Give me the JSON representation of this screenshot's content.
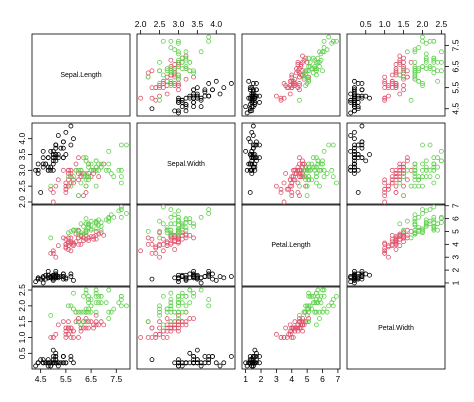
{
  "chart_data": {
    "type": "scatter",
    "variables": [
      "Sepal.Length",
      "Sepal.Width",
      "Petal.Length",
      "Petal.Width"
    ],
    "ranges": [
      [
        4.3,
        7.9
      ],
      [
        2.0,
        4.4
      ],
      [
        1.0,
        6.9
      ],
      [
        0.1,
        2.5
      ]
    ],
    "ticks": [
      [
        4.5,
        5.5,
        6.5,
        7.5
      ],
      [
        2.0,
        2.5,
        3.0,
        3.5,
        4.0
      ],
      [
        1,
        2,
        3,
        4,
        5,
        6,
        7
      ],
      [
        0.5,
        1.0,
        1.5,
        2.0,
        2.5
      ]
    ],
    "tick_labels": [
      [
        "4.5",
        "5.5",
        "6.5",
        "7.5"
      ],
      [
        "2.0",
        "2.5",
        "3.0",
        "3.5",
        "4.0"
      ],
      [
        "1",
        "2",
        "3",
        "4",
        "5",
        "6",
        "7"
      ],
      [
        "0.5",
        "1.0",
        "1.5",
        "2.0",
        "2.5"
      ]
    ],
    "point_marker": "open-circle",
    "grid": false,
    "legend": "none",
    "series": [
      {
        "color": "#000000",
        "points": [
          [
            5.1,
            3.5,
            1.4,
            0.2
          ],
          [
            4.9,
            3.0,
            1.4,
            0.2
          ],
          [
            4.7,
            3.2,
            1.3,
            0.2
          ],
          [
            4.6,
            3.1,
            1.5,
            0.2
          ],
          [
            5.0,
            3.6,
            1.4,
            0.2
          ],
          [
            5.4,
            3.9,
            1.7,
            0.4
          ],
          [
            4.6,
            3.4,
            1.4,
            0.3
          ],
          [
            5.0,
            3.4,
            1.5,
            0.2
          ],
          [
            4.4,
            2.9,
            1.4,
            0.2
          ],
          [
            4.9,
            3.1,
            1.5,
            0.1
          ],
          [
            5.4,
            3.7,
            1.5,
            0.2
          ],
          [
            4.8,
            3.4,
            1.6,
            0.2
          ],
          [
            4.8,
            3.0,
            1.4,
            0.1
          ],
          [
            4.3,
            3.0,
            1.1,
            0.1
          ],
          [
            5.8,
            4.0,
            1.2,
            0.2
          ],
          [
            5.7,
            4.4,
            1.5,
            0.4
          ],
          [
            5.4,
            3.9,
            1.3,
            0.4
          ],
          [
            5.1,
            3.5,
            1.4,
            0.3
          ],
          [
            5.7,
            3.8,
            1.7,
            0.3
          ],
          [
            5.1,
            3.8,
            1.5,
            0.3
          ],
          [
            5.4,
            3.4,
            1.7,
            0.2
          ],
          [
            5.1,
            3.7,
            1.5,
            0.4
          ],
          [
            4.6,
            3.6,
            1.0,
            0.2
          ],
          [
            5.1,
            3.3,
            1.7,
            0.5
          ],
          [
            4.8,
            3.4,
            1.9,
            0.2
          ],
          [
            5.0,
            3.0,
            1.6,
            0.2
          ],
          [
            5.0,
            3.4,
            1.6,
            0.4
          ],
          [
            5.2,
            3.5,
            1.5,
            0.2
          ],
          [
            5.2,
            3.4,
            1.4,
            0.2
          ],
          [
            4.7,
            3.2,
            1.6,
            0.2
          ],
          [
            4.8,
            3.1,
            1.6,
            0.2
          ],
          [
            5.4,
            3.4,
            1.5,
            0.4
          ],
          [
            5.2,
            4.1,
            1.5,
            0.1
          ],
          [
            5.5,
            4.2,
            1.4,
            0.2
          ],
          [
            4.9,
            3.1,
            1.5,
            0.2
          ],
          [
            5.0,
            3.2,
            1.2,
            0.2
          ],
          [
            5.5,
            3.5,
            1.3,
            0.2
          ],
          [
            4.9,
            3.6,
            1.4,
            0.1
          ],
          [
            4.4,
            3.0,
            1.3,
            0.2
          ],
          [
            5.1,
            3.4,
            1.5,
            0.2
          ],
          [
            5.0,
            3.5,
            1.3,
            0.3
          ],
          [
            4.5,
            2.3,
            1.3,
            0.3
          ],
          [
            4.4,
            3.2,
            1.3,
            0.2
          ],
          [
            5.0,
            3.5,
            1.6,
            0.6
          ],
          [
            5.1,
            3.8,
            1.9,
            0.4
          ],
          [
            4.8,
            3.0,
            1.4,
            0.3
          ],
          [
            5.1,
            3.8,
            1.6,
            0.2
          ],
          [
            4.6,
            3.2,
            1.4,
            0.2
          ],
          [
            5.3,
            3.7,
            1.5,
            0.2
          ],
          [
            5.0,
            3.3,
            1.4,
            0.2
          ]
        ]
      },
      {
        "color": "#df536b",
        "points": [
          [
            7.0,
            3.2,
            4.7,
            1.4
          ],
          [
            6.4,
            3.2,
            4.5,
            1.5
          ],
          [
            6.9,
            3.1,
            4.9,
            1.5
          ],
          [
            5.5,
            2.3,
            4.0,
            1.3
          ],
          [
            6.5,
            2.8,
            4.6,
            1.5
          ],
          [
            5.7,
            2.8,
            4.5,
            1.3
          ],
          [
            6.3,
            3.3,
            4.7,
            1.6
          ],
          [
            4.9,
            2.4,
            3.3,
            1.0
          ],
          [
            6.6,
            2.9,
            4.6,
            1.3
          ],
          [
            5.2,
            2.7,
            3.9,
            1.4
          ],
          [
            5.0,
            2.0,
            3.5,
            1.0
          ],
          [
            5.9,
            3.0,
            4.2,
            1.5
          ],
          [
            6.0,
            2.2,
            4.0,
            1.0
          ],
          [
            6.1,
            2.9,
            4.7,
            1.4
          ],
          [
            5.6,
            2.9,
            3.6,
            1.3
          ],
          [
            6.7,
            3.1,
            4.4,
            1.4
          ],
          [
            5.6,
            3.0,
            4.5,
            1.5
          ],
          [
            5.8,
            2.7,
            4.1,
            1.0
          ],
          [
            6.2,
            2.2,
            4.5,
            1.5
          ],
          [
            5.6,
            2.5,
            3.9,
            1.1
          ],
          [
            5.9,
            3.2,
            4.8,
            1.8
          ],
          [
            6.1,
            2.8,
            4.0,
            1.3
          ],
          [
            6.3,
            2.5,
            4.9,
            1.5
          ],
          [
            6.1,
            2.8,
            4.7,
            1.2
          ],
          [
            6.4,
            2.9,
            4.3,
            1.3
          ],
          [
            6.6,
            3.0,
            4.4,
            1.4
          ],
          [
            6.8,
            2.8,
            4.8,
            1.4
          ],
          [
            6.7,
            3.0,
            5.0,
            1.7
          ],
          [
            6.0,
            2.9,
            4.5,
            1.5
          ],
          [
            5.7,
            2.6,
            3.5,
            1.0
          ],
          [
            5.5,
            2.4,
            3.8,
            1.1
          ],
          [
            5.5,
            2.4,
            3.7,
            1.0
          ],
          [
            5.8,
            2.7,
            3.9,
            1.2
          ],
          [
            6.0,
            2.7,
            5.1,
            1.6
          ],
          [
            5.4,
            3.0,
            4.5,
            1.5
          ],
          [
            6.0,
            3.4,
            4.5,
            1.6
          ],
          [
            6.7,
            3.1,
            4.7,
            1.5
          ],
          [
            6.3,
            2.3,
            4.4,
            1.3
          ],
          [
            5.6,
            3.0,
            4.1,
            1.3
          ],
          [
            5.5,
            2.5,
            4.0,
            1.3
          ],
          [
            5.5,
            2.6,
            4.4,
            1.2
          ],
          [
            6.1,
            3.0,
            4.6,
            1.4
          ],
          [
            5.8,
            2.6,
            4.0,
            1.2
          ],
          [
            5.0,
            2.3,
            3.3,
            1.0
          ],
          [
            5.6,
            2.7,
            4.2,
            1.3
          ],
          [
            5.7,
            3.0,
            4.2,
            1.2
          ],
          [
            5.7,
            2.9,
            4.2,
            1.3
          ],
          [
            6.2,
            2.9,
            4.3,
            1.3
          ],
          [
            5.1,
            2.5,
            3.0,
            1.1
          ],
          [
            5.7,
            2.8,
            4.1,
            1.3
          ]
        ]
      },
      {
        "color": "#61d04f",
        "points": [
          [
            6.3,
            3.3,
            6.0,
            2.5
          ],
          [
            5.8,
            2.7,
            5.1,
            1.9
          ],
          [
            7.1,
            3.0,
            5.9,
            2.1
          ],
          [
            6.3,
            2.9,
            5.6,
            1.8
          ],
          [
            6.5,
            3.0,
            5.8,
            2.2
          ],
          [
            7.6,
            3.0,
            6.6,
            2.1
          ],
          [
            4.9,
            2.5,
            4.5,
            1.7
          ],
          [
            7.3,
            2.9,
            6.3,
            1.8
          ],
          [
            6.7,
            2.5,
            5.8,
            1.8
          ],
          [
            7.2,
            3.6,
            6.1,
            2.5
          ],
          [
            6.5,
            3.2,
            5.1,
            2.0
          ],
          [
            6.4,
            2.7,
            5.3,
            1.9
          ],
          [
            6.8,
            3.0,
            5.5,
            2.1
          ],
          [
            5.7,
            2.5,
            5.0,
            2.0
          ],
          [
            5.8,
            2.8,
            5.1,
            2.4
          ],
          [
            6.4,
            3.2,
            5.3,
            2.3
          ],
          [
            6.5,
            3.0,
            5.5,
            1.8
          ],
          [
            7.7,
            3.8,
            6.7,
            2.2
          ],
          [
            7.7,
            2.6,
            6.9,
            2.3
          ],
          [
            6.0,
            2.2,
            5.0,
            1.5
          ],
          [
            6.9,
            3.2,
            5.7,
            2.3
          ],
          [
            5.6,
            2.8,
            4.9,
            2.0
          ],
          [
            7.7,
            2.8,
            6.7,
            2.0
          ],
          [
            6.3,
            2.7,
            4.9,
            1.8
          ],
          [
            6.7,
            3.3,
            5.7,
            2.1
          ],
          [
            7.2,
            3.2,
            6.0,
            1.8
          ],
          [
            6.2,
            2.8,
            4.8,
            1.8
          ],
          [
            6.1,
            3.0,
            4.9,
            1.8
          ],
          [
            6.4,
            2.8,
            5.6,
            2.1
          ],
          [
            7.2,
            3.0,
            5.8,
            1.6
          ],
          [
            7.4,
            2.8,
            6.1,
            1.9
          ],
          [
            7.9,
            3.8,
            6.4,
            2.0
          ],
          [
            6.4,
            2.8,
            5.6,
            2.2
          ],
          [
            6.3,
            2.8,
            5.1,
            1.5
          ],
          [
            6.1,
            2.6,
            5.6,
            1.4
          ],
          [
            7.7,
            3.0,
            6.1,
            2.3
          ],
          [
            6.3,
            3.4,
            5.6,
            2.4
          ],
          [
            6.4,
            3.1,
            5.5,
            1.8
          ],
          [
            6.0,
            3.0,
            4.8,
            1.8
          ],
          [
            6.9,
            3.1,
            5.4,
            2.1
          ],
          [
            6.7,
            3.1,
            5.6,
            2.4
          ],
          [
            6.9,
            3.1,
            5.1,
            2.3
          ],
          [
            5.8,
            2.7,
            5.1,
            1.9
          ],
          [
            6.8,
            3.2,
            5.9,
            2.3
          ],
          [
            6.7,
            3.3,
            5.7,
            2.5
          ],
          [
            6.7,
            3.0,
            5.2,
            2.3
          ],
          [
            6.3,
            2.5,
            5.0,
            1.9
          ],
          [
            6.5,
            3.0,
            5.2,
            2.0
          ],
          [
            6.2,
            3.4,
            5.4,
            2.3
          ],
          [
            5.9,
            3.0,
            5.1,
            1.8
          ]
        ]
      }
    ]
  }
}
